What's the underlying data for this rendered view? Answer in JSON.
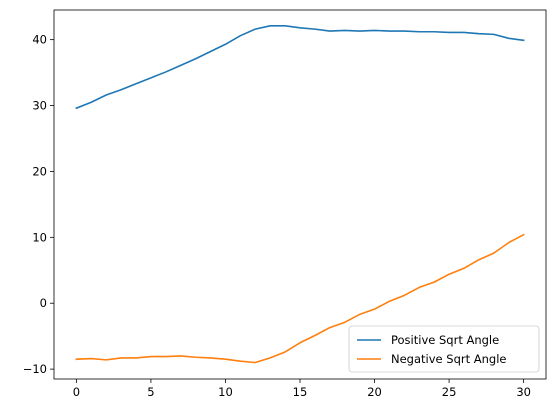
{
  "chart_data": {
    "type": "line",
    "title": "",
    "xlabel": "",
    "ylabel": "",
    "xlim": [
      -1.5,
      31.5
    ],
    "ylim": [
      -11.5,
      44.5
    ],
    "x_ticks": [
      0,
      5,
      10,
      15,
      20,
      25,
      30
    ],
    "y_ticks": [
      -10,
      0,
      10,
      20,
      30,
      40
    ],
    "grid": false,
    "legend_position": "lower-right",
    "x": [
      0,
      1,
      2,
      3,
      4,
      5,
      6,
      7,
      8,
      9,
      10,
      11,
      12,
      13,
      14,
      15,
      16,
      17,
      18,
      19,
      20,
      21,
      22,
      23,
      24,
      25,
      26,
      27,
      28,
      29,
      30
    ],
    "series": [
      {
        "name": "Positive Sqrt Angle",
        "color": "#1f77b4",
        "values": [
          29.6,
          30.5,
          31.6,
          32.4,
          33.3,
          34.2,
          35.1,
          36.1,
          37.1,
          38.2,
          39.3,
          40.6,
          41.6,
          42.1,
          42.1,
          41.8,
          41.6,
          41.3,
          41.4,
          41.3,
          41.4,
          41.3,
          41.3,
          41.2,
          41.2,
          41.1,
          41.1,
          40.9,
          40.8,
          40.2,
          39.9
        ]
      },
      {
        "name": "Negative Sqrt Angle",
        "color": "#ff7f0e",
        "values": [
          -8.5,
          -8.4,
          -8.6,
          -8.3,
          -8.3,
          -8.1,
          -8.1,
          -8.0,
          -8.2,
          -8.3,
          -8.5,
          -8.8,
          -9.0,
          -8.3,
          -7.4,
          -6.0,
          -4.9,
          -3.7,
          -2.9,
          -1.7,
          -0.9,
          0.3,
          1.2,
          2.4,
          3.2,
          4.4,
          5.3,
          6.6,
          7.6,
          9.2,
          10.4
        ]
      }
    ]
  }
}
